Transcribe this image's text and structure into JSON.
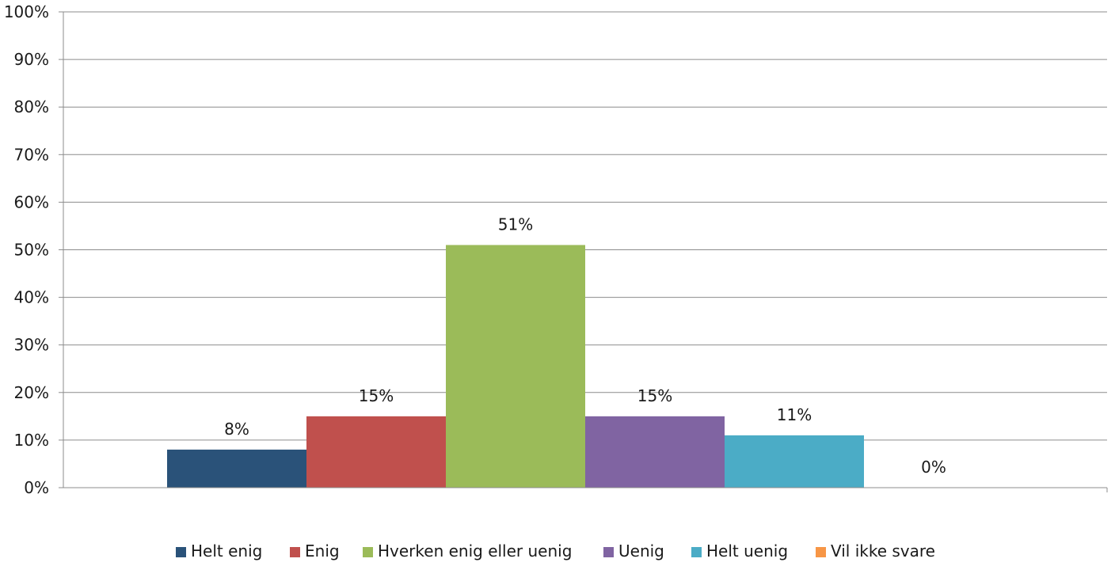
{
  "chart_data": {
    "type": "bar",
    "title": "",
    "xlabel": "",
    "ylabel": "",
    "ylim": [
      0,
      100
    ],
    "y_unit": "%",
    "grid": true,
    "legend_position": "bottom",
    "y_ticks": [
      "0%",
      "10%",
      "20%",
      "30%",
      "40%",
      "50%",
      "60%",
      "70%",
      "80%",
      "90%",
      "100%"
    ],
    "series": [
      {
        "name": "Helt enig",
        "value": 8,
        "label": "8%",
        "color": "#2a5279"
      },
      {
        "name": "Enig",
        "value": 15,
        "label": "15%",
        "color": "#c0504d"
      },
      {
        "name": "Hverken enig eller uenig",
        "value": 51,
        "label": "51%",
        "color": "#9bbb59"
      },
      {
        "name": "Uenig",
        "value": 15,
        "label": "15%",
        "color": "#8064a2"
      },
      {
        "name": "Helt uenig",
        "value": 11,
        "label": "11%",
        "color": "#4bacc6"
      },
      {
        "name": "Vil ikke svare",
        "value": 0,
        "label": "0%",
        "color": "#f79646"
      }
    ]
  }
}
